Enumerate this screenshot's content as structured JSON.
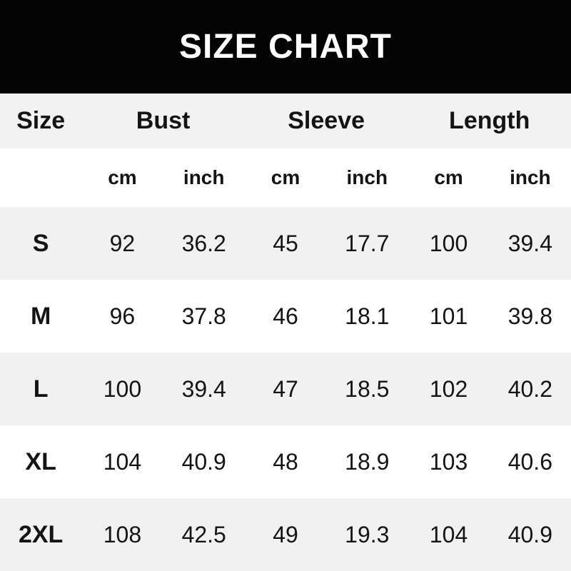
{
  "banner": {
    "bg_color": "#030303",
    "text_color": "#ffffff"
  },
  "colors": {
    "row_shade": "#f1f1f1",
    "row_plain": "#ffffff",
    "header_row_bg": "#f2f2f2",
    "text": "#141414"
  },
  "chart_data": {
    "type": "table",
    "title": "SIZE CHART",
    "group_headers": [
      "Size",
      "Bust",
      "Sleeve",
      "Length"
    ],
    "unit_headers": [
      "cm",
      "inch",
      "cm",
      "inch",
      "cm",
      "inch"
    ],
    "rows": [
      [
        "S",
        "92",
        "36.2",
        "45",
        "17.7",
        "100",
        "39.4"
      ],
      [
        "M",
        "96",
        "37.8",
        "46",
        "18.1",
        "101",
        "39.8"
      ],
      [
        "L",
        "100",
        "39.4",
        "47",
        "18.5",
        "102",
        "40.2"
      ],
      [
        "XL",
        "104",
        "40.9",
        "48",
        "18.9",
        "103",
        "40.6"
      ],
      [
        "2XL",
        "108",
        "42.5",
        "49",
        "19.3",
        "104",
        "40.9"
      ]
    ]
  }
}
